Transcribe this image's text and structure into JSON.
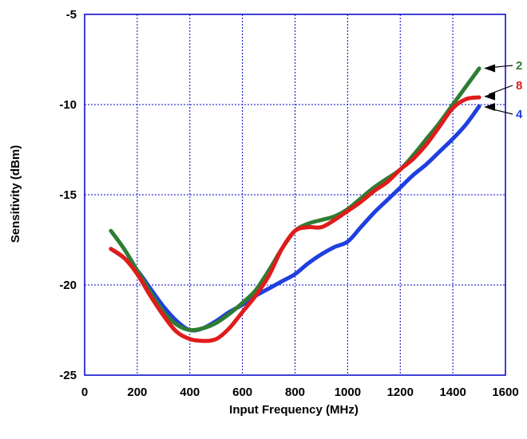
{
  "chart_data": {
    "type": "line",
    "title": "",
    "xlabel": "Input Frequency (MHz)",
    "ylabel": "Sensitivity (dBm)",
    "xlim": [
      0,
      1600
    ],
    "ylim": [
      -25,
      -5
    ],
    "grid": true,
    "grid_color": "#0000cc",
    "xticks": [
      "0",
      "200",
      "400",
      "600",
      "800",
      "1000",
      "1200",
      "1400",
      "1600"
    ],
    "yticks": [
      "-5",
      "-10",
      "-15",
      "-20",
      "-25"
    ],
    "series": [
      {
        "name": "",
        "color": "#2e7d32",
        "callout": "2",
        "x": [
          100,
          150,
          200,
          250,
          300,
          350,
          400,
          450,
          500,
          550,
          600,
          650,
          700,
          750,
          800,
          850,
          900,
          950,
          1000,
          1050,
          1100,
          1150,
          1200,
          1250,
          1300,
          1350,
          1400,
          1450,
          1500
        ],
        "y": [
          -17.0,
          -18.0,
          -19.2,
          -20.4,
          -21.5,
          -22.2,
          -22.5,
          -22.4,
          -22.1,
          -21.6,
          -21.0,
          -20.3,
          -19.2,
          -18.0,
          -17.0,
          -16.6,
          -16.4,
          -16.2,
          -15.8,
          -15.2,
          -14.6,
          -14.1,
          -13.6,
          -12.8,
          -11.9,
          -11.0,
          -10.0,
          -9.0,
          -8.0
        ]
      },
      {
        "name": "",
        "color": "#e01b1b",
        "callout": "8",
        "x": [
          100,
          150,
          200,
          250,
          300,
          350,
          400,
          450,
          500,
          550,
          600,
          650,
          700,
          750,
          800,
          850,
          900,
          950,
          1000,
          1050,
          1100,
          1150,
          1200,
          1250,
          1300,
          1350,
          1400,
          1450,
          1500
        ],
        "y": [
          -18.0,
          -18.5,
          -19.4,
          -20.6,
          -21.7,
          -22.6,
          -23.0,
          -23.1,
          -23.0,
          -22.4,
          -21.5,
          -20.6,
          -19.5,
          -18.0,
          -17.0,
          -16.8,
          -16.8,
          -16.4,
          -15.9,
          -15.4,
          -14.8,
          -14.3,
          -13.6,
          -13.0,
          -12.2,
          -11.2,
          -10.2,
          -9.7,
          -9.6
        ]
      },
      {
        "name": "",
        "color": "#1f3fe0",
        "callout": "4",
        "x": [
          100,
          150,
          200,
          250,
          300,
          350,
          400,
          450,
          500,
          550,
          600,
          650,
          700,
          750,
          800,
          850,
          900,
          950,
          1000,
          1050,
          1100,
          1150,
          1200,
          1250,
          1300,
          1350,
          1400,
          1450,
          1500
        ],
        "y": [
          -18.0,
          -18.5,
          -19.2,
          -20.2,
          -21.2,
          -22.0,
          -22.5,
          -22.4,
          -22.0,
          -21.5,
          -21.1,
          -20.6,
          -20.2,
          -19.8,
          -19.4,
          -18.8,
          -18.3,
          -17.9,
          -17.6,
          -16.8,
          -16.0,
          -15.3,
          -14.6,
          -13.9,
          -13.3,
          -12.6,
          -11.9,
          -11.1,
          -10.1
        ]
      }
    ]
  }
}
